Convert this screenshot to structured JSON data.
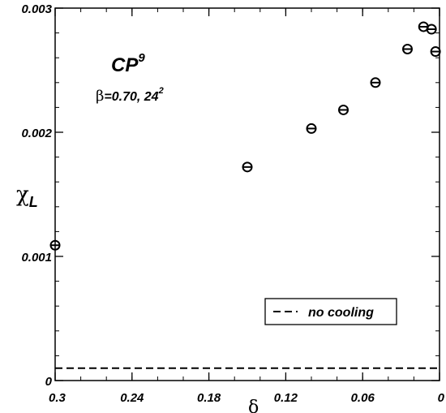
{
  "chart_data": {
    "type": "scatter",
    "title": "",
    "xlabel": "δ",
    "ylabel_symbol": "χ",
    "ylabel_subscript": "L",
    "x_reversed": true,
    "xlim": [
      0.3,
      0
    ],
    "ylim": [
      0,
      0.003
    ],
    "x_ticks": [
      {
        "value": 0.3,
        "label": "0.3"
      },
      {
        "value": 0.24,
        "label": "0.24"
      },
      {
        "value": 0.18,
        "label": "0.18"
      },
      {
        "value": 0.12,
        "label": "0.12"
      },
      {
        "value": 0.06,
        "label": "0.06"
      },
      {
        "value": 0,
        "label": "0"
      }
    ],
    "y_ticks": [
      {
        "value": 0,
        "label": "0"
      },
      {
        "value": 0.001,
        "label": "0.001"
      },
      {
        "value": 0.002,
        "label": "0.002"
      },
      {
        "value": 0.003,
        "label": "0.003"
      }
    ],
    "grid": false,
    "series": [
      {
        "marker": "circle-with-errorbar",
        "points": [
          {
            "x": 0.3,
            "y": 0.00109
          },
          {
            "x": 0.15,
            "y": 0.00172
          },
          {
            "x": 0.1,
            "y": 0.00203
          },
          {
            "x": 0.075,
            "y": 0.00218
          },
          {
            "x": 0.05,
            "y": 0.0024
          },
          {
            "x": 0.025,
            "y": 0.00267
          },
          {
            "x": 0.0125,
            "y": 0.00285
          },
          {
            "x": 0.00625,
            "y": 0.00283
          },
          {
            "x": 0.0031,
            "y": 0.00265
          }
        ]
      },
      {
        "name": "no cooling",
        "style": "dashed-line",
        "y": 0.0001
      }
    ],
    "annotations": {
      "model": "CP",
      "model_superscript": "9",
      "beta_symbol": "β",
      "beta_value": "=0.70, 24",
      "lattice_exponent": "2"
    },
    "legend_placement": "lower-right"
  }
}
